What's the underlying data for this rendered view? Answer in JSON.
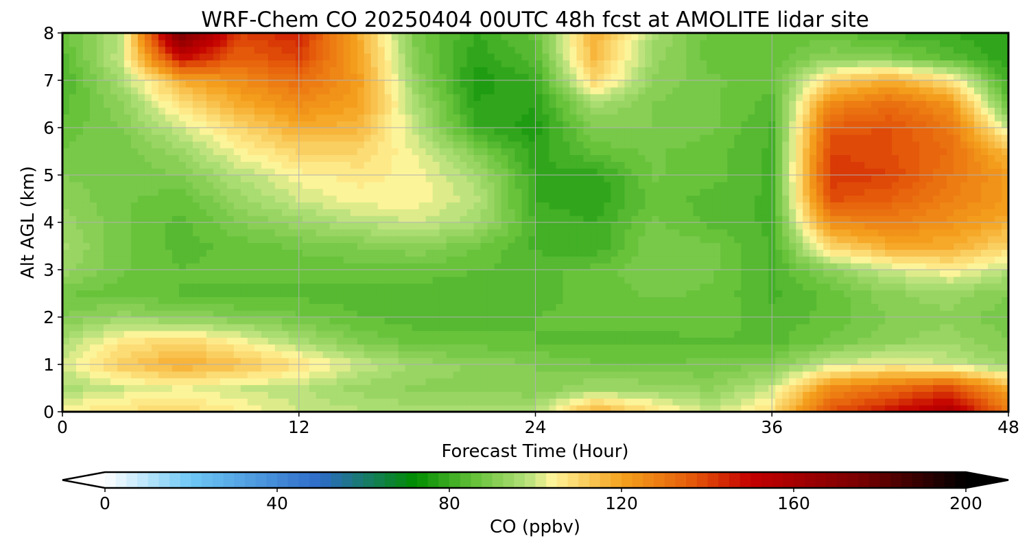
{
  "chart_data": {
    "type": "heatmap",
    "title": "WRF-Chem CO  20250404 00UTC 48h fcst at AMOLITE lidar site",
    "xlabel": "Forecast Time (Hour)",
    "ylabel": "Alt AGL (km)",
    "xlim": [
      0,
      48
    ],
    "ylim": [
      0,
      8
    ],
    "x_ticks": [
      0,
      12,
      24,
      36,
      48
    ],
    "y_ticks": [
      0,
      1,
      2,
      3,
      4,
      5,
      6,
      7,
      8
    ],
    "grid": true,
    "x_hours": [
      0,
      3,
      6,
      9,
      12,
      15,
      18,
      21,
      24,
      27,
      30,
      33,
      36,
      39,
      42,
      45,
      48
    ],
    "y_km": [
      0,
      0.5,
      1,
      1.5,
      2,
      2.5,
      3,
      3.5,
      4,
      4.5,
      5,
      5.5,
      6,
      6.5,
      7,
      7.5,
      8
    ],
    "z_ppbv": [
      [
        105,
        108,
        110,
        105,
        100,
        98,
        96,
        96,
        98,
        118,
        108,
        100,
        108,
        138,
        148,
        158,
        130
      ],
      [
        96,
        100,
        103,
        100,
        98,
        94,
        92,
        92,
        90,
        95,
        94,
        92,
        100,
        125,
        132,
        140,
        118
      ],
      [
        100,
        112,
        118,
        114,
        108,
        100,
        94,
        92,
        90,
        88,
        88,
        88,
        90,
        100,
        104,
        100,
        94
      ],
      [
        96,
        106,
        110,
        104,
        96,
        90,
        86,
        86,
        85,
        84,
        84,
        85,
        84,
        88,
        92,
        94,
        90
      ],
      [
        90,
        94,
        92,
        90,
        88,
        85,
        84,
        84,
        85,
        86,
        86,
        87,
        83,
        86,
        90,
        92,
        88
      ],
      [
        88,
        86,
        85,
        84,
        84,
        84,
        84,
        84,
        84,
        86,
        88,
        87,
        82,
        86,
        92,
        94,
        90
      ],
      [
        94,
        88,
        85,
        86,
        86,
        86,
        86,
        85,
        84,
        86,
        90,
        88,
        82,
        92,
        100,
        105,
        98
      ],
      [
        96,
        88,
        84,
        86,
        88,
        90,
        92,
        88,
        82,
        80,
        90,
        88,
        82,
        110,
        118,
        118,
        110
      ],
      [
        94,
        88,
        84,
        90,
        94,
        98,
        100,
        96,
        82,
        80,
        88,
        84,
        82,
        125,
        128,
        124,
        118
      ],
      [
        92,
        88,
        86,
        94,
        100,
        104,
        104,
        98,
        80,
        78,
        86,
        84,
        82,
        138,
        135,
        128,
        122
      ],
      [
        90,
        88,
        90,
        98,
        104,
        106,
        104,
        96,
        80,
        78,
        88,
        86,
        82,
        142,
        140,
        130,
        122
      ],
      [
        88,
        88,
        94,
        104,
        110,
        110,
        102,
        90,
        78,
        86,
        88,
        86,
        82,
        140,
        138,
        132,
        115
      ],
      [
        86,
        90,
        100,
        110,
        118,
        116,
        98,
        80,
        76,
        90,
        90,
        88,
        82,
        136,
        138,
        130,
        100
      ],
      [
        84,
        92,
        108,
        118,
        125,
        120,
        96,
        78,
        78,
        96,
        90,
        88,
        84,
        126,
        132,
        124,
        86
      ],
      [
        82,
        96,
        118,
        125,
        132,
        122,
        92,
        76,
        80,
        110,
        92,
        88,
        86,
        110,
        118,
        108,
        80
      ],
      [
        84,
        100,
        150,
        135,
        140,
        120,
        90,
        78,
        84,
        116,
        94,
        86,
        86,
        92,
        90,
        84,
        78
      ],
      [
        86,
        98,
        175,
        140,
        145,
        118,
        88,
        80,
        86,
        118,
        96,
        86,
        86,
        86,
        82,
        80,
        78
      ]
    ],
    "colorbar": {
      "label": "CO  (ppbv)",
      "min": 0,
      "max": 200,
      "ticks": [
        0,
        40,
        80,
        120,
        160,
        200
      ],
      "extend": "both",
      "levels": 80
    },
    "color_scale": [
      {
        "value": 0,
        "color": "#ffffff"
      },
      {
        "value": 20,
        "color": "#6ec8f5"
      },
      {
        "value": 50,
        "color": "#2d6bc8"
      },
      {
        "value": 72,
        "color": "#008c00"
      },
      {
        "value": 86,
        "color": "#66c23a"
      },
      {
        "value": 98,
        "color": "#b5e07a"
      },
      {
        "value": 104,
        "color": "#fff59a"
      },
      {
        "value": 120,
        "color": "#f5a21e"
      },
      {
        "value": 136,
        "color": "#e65c0a"
      },
      {
        "value": 150,
        "color": "#c40000"
      },
      {
        "value": 175,
        "color": "#7a0000"
      },
      {
        "value": 200,
        "color": "#000000"
      }
    ],
    "grid_color": "#b0b0b0"
  }
}
